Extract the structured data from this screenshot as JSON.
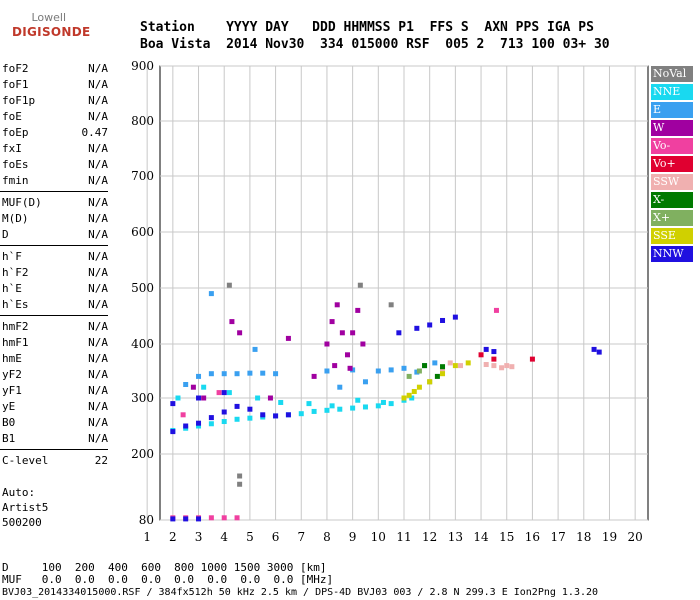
{
  "logo": {
    "line1": "Lowell",
    "line2": "DIGISONDE"
  },
  "header": {
    "labels": "Station    YYYY DAY   DDD HHMMSS P1  FFS S  AXN PPS IGA PS",
    "values": "Boa Vista  2014 Nov30  334 015000 RSF  005 2  713 100 03+ 30"
  },
  "params": [
    {
      "group": [
        {
          "name": "foF2",
          "value": "N/A"
        },
        {
          "name": "foF1",
          "value": "N/A"
        },
        {
          "name": "foF1p",
          "value": "N/A"
        },
        {
          "name": "foE",
          "value": "N/A"
        },
        {
          "name": "foEp",
          "value": "0.47"
        },
        {
          "name": "fxI",
          "value": "N/A"
        },
        {
          "name": "foEs",
          "value": "N/A"
        },
        {
          "name": "fmin",
          "value": "N/A"
        }
      ]
    },
    {
      "group": [
        {
          "name": "MUF(D)",
          "value": "N/A"
        },
        {
          "name": "M(D)",
          "value": "N/A"
        },
        {
          "name": "D",
          "value": "N/A"
        }
      ]
    },
    {
      "group": [
        {
          "name": "h`F",
          "value": "N/A"
        },
        {
          "name": "h`F2",
          "value": "N/A"
        },
        {
          "name": "h`E",
          "value": "N/A"
        },
        {
          "name": "h`Es",
          "value": "N/A"
        }
      ]
    },
    {
      "group": [
        {
          "name": "hmF2",
          "value": "N/A"
        },
        {
          "name": "hmF1",
          "value": "N/A"
        },
        {
          "name": "hmE",
          "value": "N/A"
        },
        {
          "name": "yF2",
          "value": "N/A"
        },
        {
          "name": "yF1",
          "value": "N/A"
        },
        {
          "name": "yE",
          "value": "N/A"
        },
        {
          "name": "B0",
          "value": "N/A"
        },
        {
          "name": "B1",
          "value": "N/A"
        }
      ]
    },
    {
      "group": [
        {
          "name": "C-level",
          "value": "22"
        }
      ]
    }
  ],
  "auto": {
    "line1": "Auto:",
    "line2": "Artist5",
    "line3": "500200"
  },
  "legend": [
    {
      "label": "NoVal",
      "color": "#808080"
    },
    {
      "label": "NNE",
      "color": "#19d9f0"
    },
    {
      "label": "E",
      "color": "#3aa0f0"
    },
    {
      "label": "W",
      "color": "#a000a0"
    },
    {
      "label": "Vo-",
      "color": "#f040a0"
    },
    {
      "label": "Vo+",
      "color": "#e00030"
    },
    {
      "label": "SSW",
      "color": "#f0b0b0"
    },
    {
      "label": "X-",
      "color": "#007a00"
    },
    {
      "label": "X+",
      "color": "#80b060"
    },
    {
      "label": "SSE",
      "color": "#d0d000"
    },
    {
      "label": "NNW",
      "color": "#2010e0"
    }
  ],
  "footer": {
    "line1": "D     100  200  400  600  800 1000 1500 3000 [km]",
    "line2": "MUF   0.0  0.0  0.0  0.0  0.0  0.0  0.0  0.0 [MHz]",
    "line3": "BVJ03_2014334015000.RSF / 384fx512h 50 kHz 2.5 km / DPS-4D BVJ03 003 / 2.8 N 299.3 E Ion2Png 1.3.20"
  },
  "chart_data": {
    "type": "scatter",
    "title": "",
    "xlabel": "",
    "ylabel": "",
    "xlim": [
      1.5,
      20.5
    ],
    "ylim": [
      80,
      900
    ],
    "xticks": [
      "1",
      "2",
      "3",
      "4",
      "5",
      "6",
      "7",
      "8",
      "9",
      "10",
      "11",
      "12",
      "13",
      "14",
      "15",
      "16",
      "17",
      "18",
      "19",
      "20"
    ],
    "yticks": [
      "80",
      "200",
      "300",
      "400",
      "500",
      "600",
      "700",
      "800",
      "900"
    ],
    "grid": true,
    "series": [
      {
        "name": "NNE",
        "color": "#19d9f0",
        "points": [
          [
            2.0,
            242
          ],
          [
            2.5,
            246
          ],
          [
            3.0,
            250
          ],
          [
            3.5,
            254
          ],
          [
            4.0,
            258
          ],
          [
            4.5,
            262
          ],
          [
            5.0,
            264
          ],
          [
            5.5,
            266
          ],
          [
            6.0,
            268
          ],
          [
            6.5,
            270
          ],
          [
            7.0,
            272
          ],
          [
            7.5,
            276
          ],
          [
            8.0,
            278
          ],
          [
            8.5,
            280
          ],
          [
            9.0,
            282
          ],
          [
            9.5,
            284
          ],
          [
            10.0,
            286
          ],
          [
            10.5,
            290
          ],
          [
            11.0,
            296
          ],
          [
            11.3,
            300
          ],
          [
            2.2,
            300
          ],
          [
            3.2,
            320
          ],
          [
            4.2,
            310
          ],
          [
            5.3,
            300
          ],
          [
            6.2,
            292
          ],
          [
            7.3,
            290
          ],
          [
            8.2,
            286
          ],
          [
            9.2,
            296
          ],
          [
            10.2,
            292
          ]
        ]
      },
      {
        "name": "E",
        "color": "#3aa0f0",
        "points": [
          [
            2.5,
            325
          ],
          [
            3.0,
            340
          ],
          [
            3.5,
            345
          ],
          [
            4.0,
            345
          ],
          [
            4.5,
            345
          ],
          [
            5.0,
            346
          ],
          [
            5.5,
            346
          ],
          [
            6.0,
            345
          ],
          [
            8.0,
            350
          ],
          [
            9.0,
            352
          ],
          [
            10.0,
            350
          ],
          [
            10.5,
            352
          ],
          [
            11.0,
            355
          ],
          [
            11.5,
            348
          ],
          [
            8.5,
            320
          ],
          [
            9.5,
            330
          ],
          [
            3.5,
            490
          ],
          [
            5.2,
            390
          ],
          [
            11.8,
            360
          ],
          [
            12.2,
            365
          ]
        ]
      },
      {
        "name": "W",
        "color": "#a000a0",
        "points": [
          [
            8.0,
            400
          ],
          [
            8.2,
            440
          ],
          [
            8.4,
            470
          ],
          [
            8.6,
            420
          ],
          [
            8.8,
            380
          ],
          [
            9.0,
            420
          ],
          [
            9.2,
            460
          ],
          [
            9.4,
            400
          ],
          [
            8.3,
            360
          ],
          [
            8.9,
            355
          ],
          [
            4.3,
            440
          ],
          [
            4.6,
            420
          ],
          [
            3.2,
            300
          ],
          [
            2.8,
            320
          ],
          [
            6.5,
            410
          ],
          [
            7.5,
            340
          ],
          [
            5.8,
            300
          ]
        ]
      },
      {
        "name": "Vo-",
        "color": "#f040a0",
        "points": [
          [
            2.0,
            84
          ],
          [
            2.5,
            84
          ],
          [
            3.0,
            84
          ],
          [
            3.5,
            84
          ],
          [
            4.0,
            84
          ],
          [
            4.5,
            84
          ],
          [
            14.6,
            460
          ],
          [
            2.4,
            270
          ],
          [
            3.8,
            310
          ]
        ]
      },
      {
        "name": "Vo+",
        "color": "#e00030",
        "points": [
          [
            14.0,
            380
          ],
          [
            14.5,
            372
          ],
          [
            16.0,
            372
          ]
        ]
      },
      {
        "name": "SSW",
        "color": "#f0b0b0",
        "points": [
          [
            14.5,
            360
          ],
          [
            14.8,
            356
          ],
          [
            15.0,
            360
          ],
          [
            15.2,
            358
          ],
          [
            14.2,
            362
          ],
          [
            12.8,
            365
          ],
          [
            13.2,
            360
          ],
          [
            12.5,
            350
          ]
        ]
      },
      {
        "name": "X-",
        "color": "#007a00",
        "points": [
          [
            11.8,
            360
          ],
          [
            12.3,
            340
          ],
          [
            12.5,
            358
          ]
        ]
      },
      {
        "name": "X+",
        "color": "#80b060",
        "points": [
          [
            11.2,
            340
          ],
          [
            11.6,
            350
          ],
          [
            12.0,
            330
          ]
        ]
      },
      {
        "name": "SSE",
        "color": "#d0d000",
        "points": [
          [
            11.0,
            300
          ],
          [
            11.2,
            305
          ],
          [
            11.4,
            312
          ],
          [
            11.6,
            320
          ],
          [
            12.0,
            330
          ],
          [
            12.5,
            345
          ],
          [
            13.0,
            360
          ],
          [
            13.5,
            365
          ]
        ]
      },
      {
        "name": "NNW",
        "color": "#2010e0",
        "points": [
          [
            2.0,
            240
          ],
          [
            2.5,
            250
          ],
          [
            3.0,
            255
          ],
          [
            3.5,
            265
          ],
          [
            4.0,
            275
          ],
          [
            4.5,
            285
          ],
          [
            5.0,
            280
          ],
          [
            5.5,
            270
          ],
          [
            6.0,
            268
          ],
          [
            6.5,
            270
          ],
          [
            2.0,
            290
          ],
          [
            3.0,
            300
          ],
          [
            4.0,
            310
          ],
          [
            10.8,
            420
          ],
          [
            11.5,
            428
          ],
          [
            12.0,
            434
          ],
          [
            12.5,
            442
          ],
          [
            13.0,
            448
          ],
          [
            14.2,
            390
          ],
          [
            14.5,
            386
          ],
          [
            18.4,
            390
          ],
          [
            18.6,
            385
          ],
          [
            2.0,
            82
          ],
          [
            2.5,
            82
          ],
          [
            3.0,
            82
          ]
        ]
      },
      {
        "name": "NoVal",
        "color": "#808080",
        "points": [
          [
            4.2,
            505
          ],
          [
            4.6,
            145
          ],
          [
            4.6,
            160
          ],
          [
            9.3,
            505
          ],
          [
            10.5,
            470
          ]
        ]
      }
    ]
  }
}
